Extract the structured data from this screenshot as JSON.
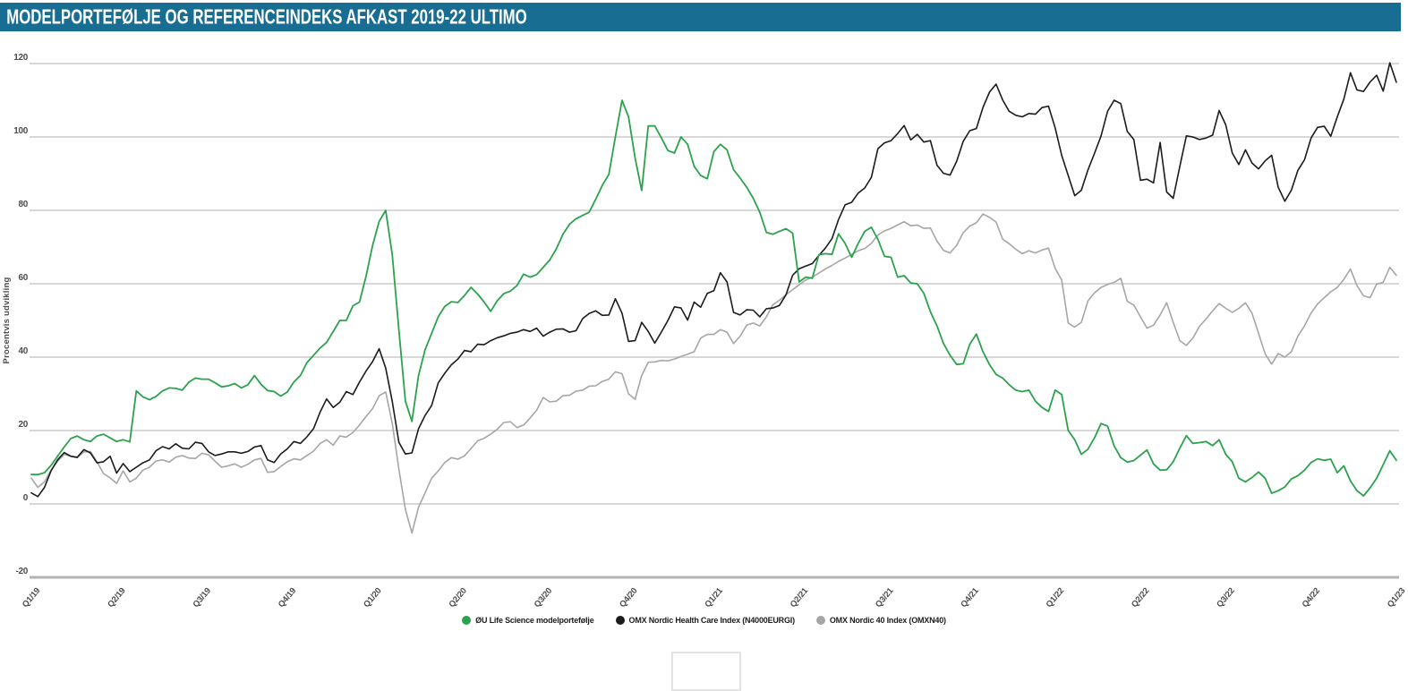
{
  "header": {
    "title": "MODELPORTEFØLJE OG REFERENCEINDEKS AFKAST 2019-22 ULTIMO",
    "bar_color": "#186D93"
  },
  "chart_data": {
    "type": "line",
    "title": "MODELPORTEFØLJE OG REFERENCEINDEKS AFKAST 2019-22 ULTIMO",
    "xlabel": "",
    "ylabel": "Procentvis udvikling",
    "ylim": [
      -20,
      120
    ],
    "y_ticks": [
      120,
      100,
      80,
      60,
      40,
      20,
      0,
      -20
    ],
    "x_labels": [
      "Q1/19",
      "Q2/19",
      "Q3/19",
      "Q4/19",
      "Q1/20",
      "Q2/20",
      "Q3/20",
      "Q4/20",
      "Q1/21",
      "Q2/21",
      "Q3/21",
      "Q4/21",
      "Q1/22",
      "Q2/22",
      "Q3/22",
      "Q4/22",
      "Q1/23"
    ],
    "x_points_per_quarter": 13,
    "grid": "horizontal",
    "legend_position": "bottom-center",
    "colors": {
      "gridline": "#cccccc",
      "axis_line": "#b3b3b3",
      "tick_text": "#4d4d4d"
    },
    "series": [
      {
        "name": "ØU Life Science modelportefølje",
        "color": "#2BA24C",
        "width": 1.8,
        "values": [
          8,
          8,
          8.5,
          10.5,
          13,
          15.5,
          17.8,
          18.5,
          17.5,
          17,
          18.5,
          19,
          18,
          17,
          17.5,
          16.9,
          30.8,
          29.2,
          28.4,
          29.3,
          30.8,
          31.6,
          31.5,
          31,
          33.2,
          34.3,
          34,
          34,
          33,
          31.9,
          32.2,
          32.8,
          31.6,
          32.5,
          35,
          32.6,
          30.9,
          30.6,
          29.4,
          30.5,
          33.2,
          35,
          38.5,
          40.5,
          42.5,
          44,
          47,
          50,
          50,
          54,
          55,
          62,
          70.5,
          77,
          80,
          68,
          47.5,
          28,
          22.5,
          35,
          42,
          46.5,
          51,
          53.8,
          55.1,
          54.9,
          56.8,
          59,
          57.2,
          55,
          52.5,
          55.4,
          57.3,
          58,
          59.5,
          62.6,
          61.8,
          62.5,
          64.5,
          66.5,
          69.5,
          73.5,
          76.2,
          77.7,
          78.6,
          79.5,
          83,
          86.8,
          89.8,
          100,
          110,
          105.5,
          94.3,
          85.4,
          103,
          103,
          99.8,
          96.3,
          95.6,
          100,
          98,
          92,
          89.5,
          88.6,
          96,
          98,
          96.5,
          91.1,
          88.8,
          86.3,
          83.3,
          79.5,
          74,
          73.5,
          74.3,
          75,
          73.8,
          60.5,
          61.8,
          61.5,
          67.9,
          68.2,
          68,
          73.6,
          71,
          67.2,
          71,
          74.3,
          75.4,
          72.1,
          67.5,
          67.2,
          61.8,
          62.2,
          60.2,
          60,
          57.4,
          52.4,
          48.5,
          43.7,
          40.5,
          38,
          38.2,
          43.5,
          46.3,
          41.5,
          38,
          35.3,
          34.3,
          32.5,
          31,
          30.6,
          31,
          28,
          26.3,
          25.2,
          31,
          29.8,
          20,
          17.5,
          13.5,
          14.9,
          18,
          21.9,
          21.2,
          15.8,
          12.6,
          11.4,
          11.8,
          13.3,
          14.7,
          10.9,
          9.2,
          9.3,
          11.5,
          15.2,
          18.6,
          16.5,
          16.7,
          17,
          15.9,
          17.5,
          13.5,
          11.5,
          7,
          6,
          7.2,
          8.7,
          7,
          2.9,
          3.6,
          4.6,
          6.8,
          7.7,
          9.2,
          11.3,
          12.3,
          11.9,
          12.2,
          8.5,
          10.4,
          6.3,
          3.6,
          2.2,
          4.4,
          7,
          10.7,
          14.5,
          11.9
        ]
      },
      {
        "name": "OMX Nordic Health Care Index (N4000EURGI)",
        "color": "#1B1B1B",
        "width": 1.6,
        "values": [
          3,
          2,
          4.5,
          9,
          12,
          14,
          13,
          12.7,
          14.8,
          13.9,
          11.2,
          11.5,
          13,
          8.4,
          11,
          8.8,
          10,
          11.2,
          12,
          14.5,
          15.6,
          15,
          16.4,
          15.2,
          15,
          16.8,
          16.5,
          14.2,
          13.2,
          13.6,
          14.2,
          14.2,
          13.8,
          14.3,
          15.5,
          15.9,
          12,
          11.3,
          13.6,
          15,
          17,
          16.5,
          18.3,
          20.5,
          25,
          28.6,
          26.3,
          27.7,
          30.6,
          29.8,
          33.2,
          36.2,
          38.8,
          42.3,
          37,
          28,
          16.8,
          13.6,
          13.9,
          20.5,
          24.1,
          26.8,
          33,
          35.6,
          37.9,
          39.5,
          41.8,
          41.5,
          43.5,
          43.4,
          44.5,
          45.3,
          45.8,
          46.5,
          46.8,
          47.5,
          47,
          47.9,
          45.7,
          46.8,
          47.6,
          47.7,
          46.8,
          47.2,
          50.5,
          51.9,
          52.6,
          51.4,
          51.5,
          55.9,
          52,
          44.3,
          44.5,
          49.5,
          47,
          43.8,
          46.8,
          50,
          53.7,
          53.4,
          50.1,
          55,
          53.6,
          57.4,
          58.1,
          63,
          60.5,
          52.2,
          51.5,
          52.9,
          52.8,
          51,
          53.2,
          53.4,
          54.1,
          57,
          62.3,
          64.1,
          64.8,
          65.5,
          67.7,
          69.7,
          72.3,
          77.5,
          81.5,
          82.2,
          84.7,
          86.1,
          89,
          96.8,
          98.4,
          99,
          100.9,
          103.1,
          99.2,
          100.7,
          98.6,
          99,
          92.3,
          90.1,
          89.6,
          93.4,
          98.8,
          101.7,
          102.3,
          108,
          112.2,
          114.4,
          110.1,
          107,
          105.9,
          105.5,
          106.4,
          106.2,
          108,
          108.4,
          102.5,
          95,
          89.5,
          84,
          85.5,
          91,
          95.5,
          100.3,
          107,
          110,
          109.1,
          101.5,
          99.3,
          88.2,
          88.5,
          87.5,
          98.5,
          85,
          83.3,
          92,
          100.3,
          100,
          99.3,
          99.7,
          100.5,
          107.2,
          103.3,
          95.6,
          92.5,
          96.5,
          92.9,
          91.3,
          93.5,
          95,
          86.3,
          82.5,
          85.5,
          90.9,
          93.8,
          99.7,
          102.6,
          102.9,
          100.2,
          105.5,
          110.3,
          117.5,
          112.8,
          112.4,
          115,
          116.8,
          112.5,
          120.2,
          114.9
        ]
      },
      {
        "name": "OMX Nordic 40 Index (OMXN40)",
        "color": "#A6A6A6",
        "width": 1.6,
        "values": [
          7,
          4.5,
          6,
          9.2,
          11.6,
          13.5,
          13,
          12.6,
          14.2,
          14.3,
          11.5,
          8.3,
          7.1,
          5.6,
          9,
          6,
          7,
          9.2,
          10,
          11.7,
          12,
          11.4,
          12.7,
          13.2,
          12.5,
          12.4,
          13.8,
          13.4,
          11.6,
          10,
          10.4,
          10.9,
          10,
          10.8,
          12,
          12.4,
          8.6,
          8.8,
          10.2,
          11.5,
          12.3,
          12,
          13.2,
          14.4,
          16.5,
          17.5,
          16,
          18.5,
          18.2,
          19.5,
          21.5,
          23.8,
          26,
          29.5,
          30.5,
          22,
          9.5,
          -1.5,
          -7.9,
          -0.9,
          3,
          7,
          9,
          11.3,
          12.6,
          12.2,
          13.1,
          15.1,
          17.2,
          17.9,
          19,
          20.4,
          22.2,
          22.4,
          20.8,
          21.5,
          23.4,
          25.5,
          29,
          27.8,
          28,
          29.5,
          29.6,
          30.7,
          31,
          32.1,
          32.2,
          33.4,
          34,
          36,
          35.5,
          30,
          28.5,
          35,
          38.6,
          38.7,
          39.1,
          39,
          39.5,
          40.2,
          40.8,
          41.5,
          45.2,
          46.2,
          46.2,
          47.5,
          46.8,
          43.7,
          45.7,
          48.7,
          49.3,
          48.5,
          51,
          54.3,
          55.5,
          57,
          58.4,
          59.7,
          61,
          61.8,
          62.9,
          64,
          65,
          66.1,
          67,
          68,
          69,
          69.6,
          71,
          73.3,
          74.4,
          75.1,
          76,
          76.9,
          75.8,
          76,
          75.1,
          75.2,
          71.6,
          69.1,
          68.4,
          70.5,
          73.9,
          75.7,
          76.6,
          79,
          78.1,
          76.8,
          72.2,
          70.9,
          69.4,
          68.2,
          69,
          68.4,
          69.2,
          69.7,
          64.2,
          61,
          49.3,
          48.2,
          49.5,
          55.3,
          57.5,
          59,
          59.8,
          60.4,
          61.5,
          55.2,
          54.2,
          51,
          47.9,
          48.7,
          51.5,
          54.8,
          49.5,
          44.5,
          43.2,
          45.2,
          48.4,
          50.4,
          52.6,
          54.6,
          53.3,
          52.2,
          53.3,
          54.8,
          52,
          46.5,
          40.9,
          38.1,
          41,
          40,
          41.5,
          45.7,
          48.5,
          52,
          54.5,
          56.2,
          57.8,
          59,
          61.2,
          64,
          59.5,
          56.7,
          56.2,
          59.9,
          60.4,
          64.5,
          62.3
        ]
      }
    ]
  }
}
